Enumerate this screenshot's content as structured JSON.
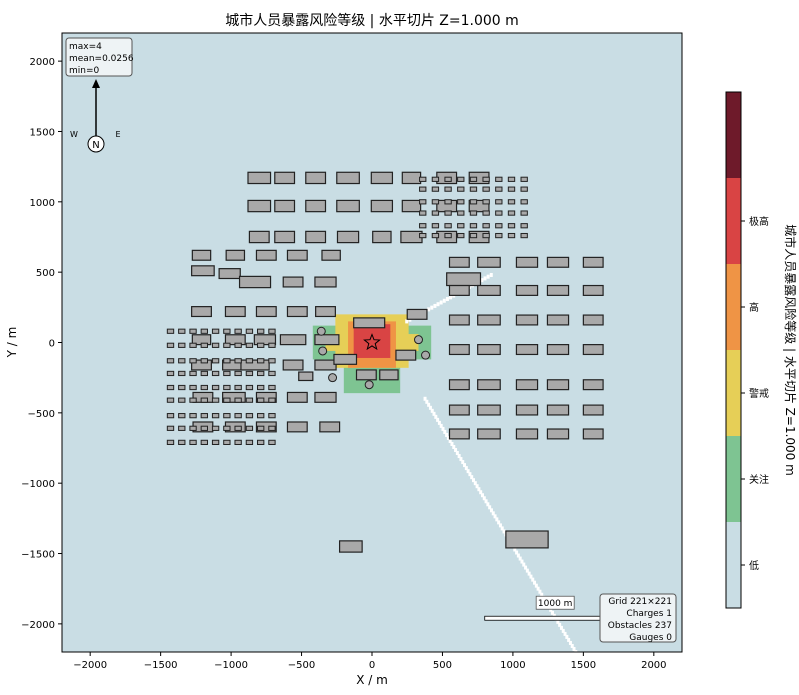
{
  "chart_data": {
    "type": "heatmap",
    "title": "城市人员暴露风险等级  |  水平切片 Z=1.000 m",
    "xlabel": "X / m",
    "ylabel": "Y / m",
    "xlim": [
      -2200,
      2200
    ],
    "ylim": [
      -2200,
      2200
    ],
    "xticks": [
      -2000,
      -1500,
      -1000,
      -500,
      0,
      500,
      1000,
      1500,
      2000
    ],
    "yticks": [
      -2000,
      -1500,
      -1000,
      -500,
      0,
      500,
      1000,
      1500,
      2000
    ],
    "xtick_labels": [
      "−2000",
      "−1500",
      "−1000",
      "−500",
      "0",
      "500",
      "1000",
      "1500",
      "2000"
    ],
    "ytick_labels": [
      "−2000",
      "−1500",
      "−1000",
      "−500",
      "0",
      "500",
      "1000",
      "1500",
      "2000"
    ],
    "grid": false,
    "stats": [
      "max=4",
      "mean=0.0256",
      "min=0"
    ],
    "compass": {
      "north": "N",
      "west": "W",
      "east": "E"
    },
    "scale_bar": {
      "label": "1000 m",
      "length": 1000,
      "x0": 800,
      "y": -1960
    },
    "info_box": [
      "Grid 221×221",
      "Charges 1",
      "Obstacles 237",
      "Gauges 0"
    ],
    "source": {
      "x": 0,
      "y": 0,
      "marker": "star"
    },
    "colorbar": {
      "label": "城市人员暴露风险等级  |  水平切片 Z=1.000 m",
      "levels": [
        {
          "name": "低",
          "color": "#c9dde4"
        },
        {
          "name": "关注",
          "color": "#7ec492"
        },
        {
          "name": "警戒",
          "color": "#e6cf57"
        },
        {
          "name": "高",
          "color": "#ef9445"
        },
        {
          "name": "极高",
          "color": "#d94444"
        },
        {
          "name": "",
          "color": "#6e1a2a"
        }
      ]
    },
    "risk_zones": [
      {
        "level": "关注",
        "color": "#7ec492",
        "rects": [
          [
            -420,
            -120,
            420,
            120
          ],
          [
            -200,
            -360,
            200,
            180
          ],
          [
            -300,
            -80,
            300,
            80
          ]
        ]
      },
      {
        "level": "警戒",
        "color": "#e6cf57",
        "rects": [
          [
            -260,
            -180,
            260,
            200
          ],
          [
            -330,
            -60,
            330,
            60
          ]
        ]
      },
      {
        "level": "高",
        "color": "#ef9445",
        "rects": [
          [
            -170,
            -180,
            170,
            150
          ]
        ]
      },
      {
        "level": "极高",
        "color": "#d94444",
        "rects": [
          [
            -130,
            -110,
            130,
            130
          ]
        ]
      }
    ],
    "plume": [
      {
        "from": [
          250,
          150
        ],
        "to": [
          850,
          480
        ],
        "width": 25
      },
      {
        "from": [
          380,
          -400
        ],
        "to": [
          1450,
          -2200
        ],
        "width": 45
      }
    ],
    "buildings": [
      [
        -800,
        1170,
        160,
        80
      ],
      [
        -620,
        1170,
        140,
        80
      ],
      [
        -400,
        1170,
        140,
        80
      ],
      [
        -170,
        1170,
        160,
        80
      ],
      [
        70,
        1170,
        150,
        80
      ],
      [
        280,
        1170,
        130,
        80
      ],
      [
        530,
        1170,
        140,
        80
      ],
      [
        760,
        1170,
        140,
        80
      ],
      [
        -800,
        970,
        160,
        80
      ],
      [
        -620,
        970,
        140,
        80
      ],
      [
        -400,
        970,
        140,
        80
      ],
      [
        -170,
        970,
        160,
        80
      ],
      [
        70,
        970,
        150,
        80
      ],
      [
        280,
        970,
        130,
        80
      ],
      [
        530,
        970,
        140,
        80
      ],
      [
        760,
        970,
        140,
        80
      ],
      [
        -800,
        750,
        140,
        80
      ],
      [
        -620,
        750,
        140,
        80
      ],
      [
        -400,
        750,
        140,
        80
      ],
      [
        -170,
        750,
        150,
        80
      ],
      [
        70,
        750,
        130,
        80
      ],
      [
        280,
        750,
        150,
        80
      ],
      [
        530,
        750,
        140,
        80
      ],
      [
        760,
        750,
        140,
        80
      ],
      [
        -1210,
        620,
        130,
        70
      ],
      [
        -970,
        620,
        130,
        70
      ],
      [
        -750,
        620,
        140,
        70
      ],
      [
        -530,
        620,
        140,
        70
      ],
      [
        -290,
        620,
        130,
        70
      ],
      [
        -1200,
        510,
        160,
        70
      ],
      [
        -1010,
        490,
        150,
        70
      ],
      [
        -830,
        430,
        220,
        80
      ],
      [
        -560,
        430,
        140,
        70
      ],
      [
        -330,
        430,
        150,
        70
      ],
      [
        -1210,
        220,
        140,
        70
      ],
      [
        -970,
        220,
        140,
        70
      ],
      [
        -750,
        220,
        140,
        70
      ],
      [
        -530,
        220,
        140,
        70
      ],
      [
        -330,
        220,
        140,
        70
      ],
      [
        -1210,
        20,
        130,
        70
      ],
      [
        -970,
        20,
        140,
        70
      ],
      [
        -760,
        20,
        150,
        70
      ],
      [
        -560,
        20,
        180,
        70
      ],
      [
        -320,
        20,
        170,
        70
      ],
      [
        -1210,
        -160,
        140,
        70
      ],
      [
        -980,
        -160,
        160,
        70
      ],
      [
        -830,
        -160,
        200,
        70
      ],
      [
        -560,
        -160,
        140,
        70
      ],
      [
        -330,
        -160,
        150,
        70
      ],
      [
        -1200,
        -390,
        140,
        70
      ],
      [
        -980,
        -390,
        160,
        70
      ],
      [
        -750,
        -390,
        140,
        70
      ],
      [
        -530,
        -390,
        140,
        70
      ],
      [
        -330,
        -390,
        150,
        70
      ],
      [
        -1200,
        -600,
        140,
        70
      ],
      [
        -970,
        -600,
        140,
        70
      ],
      [
        -750,
        -600,
        140,
        70
      ],
      [
        -530,
        -600,
        140,
        70
      ],
      [
        -300,
        -600,
        140,
        70
      ],
      [
        -20,
        140,
        220,
        70
      ],
      [
        320,
        200,
        140,
        70
      ],
      [
        -190,
        -120,
        160,
        70
      ],
      [
        -40,
        -230,
        140,
        70
      ],
      [
        120,
        -230,
        130,
        70
      ],
      [
        240,
        -90,
        140,
        70
      ],
      [
        -470,
        -240,
        100,
        60
      ],
      [
        620,
        570,
        140,
        70
      ],
      [
        830,
        570,
        160,
        70
      ],
      [
        1100,
        570,
        150,
        70
      ],
      [
        1320,
        570,
        150,
        70
      ],
      [
        1570,
        570,
        140,
        70
      ],
      [
        650,
        450,
        240,
        90
      ],
      [
        620,
        370,
        140,
        70
      ],
      [
        830,
        370,
        160,
        70
      ],
      [
        1100,
        370,
        150,
        70
      ],
      [
        1320,
        370,
        150,
        70
      ],
      [
        1570,
        370,
        140,
        70
      ],
      [
        620,
        160,
        140,
        70
      ],
      [
        830,
        160,
        160,
        70
      ],
      [
        1100,
        160,
        150,
        70
      ],
      [
        1320,
        160,
        150,
        70
      ],
      [
        1570,
        160,
        140,
        70
      ],
      [
        620,
        -50,
        140,
        70
      ],
      [
        830,
        -50,
        160,
        70
      ],
      [
        1100,
        -50,
        150,
        70
      ],
      [
        1320,
        -50,
        150,
        70
      ],
      [
        1570,
        -50,
        140,
        70
      ],
      [
        620,
        -300,
        140,
        70
      ],
      [
        830,
        -300,
        160,
        70
      ],
      [
        1100,
        -300,
        150,
        70
      ],
      [
        1320,
        -300,
        150,
        70
      ],
      [
        1570,
        -300,
        140,
        70
      ],
      [
        620,
        -480,
        140,
        70
      ],
      [
        830,
        -480,
        160,
        70
      ],
      [
        1100,
        -480,
        150,
        70
      ],
      [
        1320,
        -480,
        150,
        70
      ],
      [
        1570,
        -480,
        140,
        70
      ],
      [
        620,
        -650,
        140,
        70
      ],
      [
        830,
        -650,
        160,
        70
      ],
      [
        1100,
        -650,
        150,
        70
      ],
      [
        1320,
        -650,
        150,
        70
      ],
      [
        1570,
        -650,
        140,
        70
      ],
      [
        1100,
        -1400,
        300,
        120
      ],
      [
        -150,
        -1450,
        160,
        80
      ]
    ],
    "small_lot_rows": {
      "left": {
        "x_start": -1430,
        "x_end": -650,
        "y_values": [
          80,
          -20,
          -130,
          -220,
          -320,
          -410,
          -520,
          -610,
          -710
        ],
        "size": [
          45,
          30
        ],
        "step": 80
      },
      "right": {
        "x_start": 360,
        "x_end": 1100,
        "y_values": [
          1160,
          1090,
          1000,
          920,
          830,
          760
        ],
        "size": [
          45,
          30
        ],
        "step": 90
      }
    },
    "circles": [
      [
        -360,
        80
      ],
      [
        -350,
        -60
      ],
      [
        -20,
        -300
      ],
      [
        -280,
        -250
      ],
      [
        330,
        20
      ],
      [
        380,
        -90
      ]
    ]
  }
}
